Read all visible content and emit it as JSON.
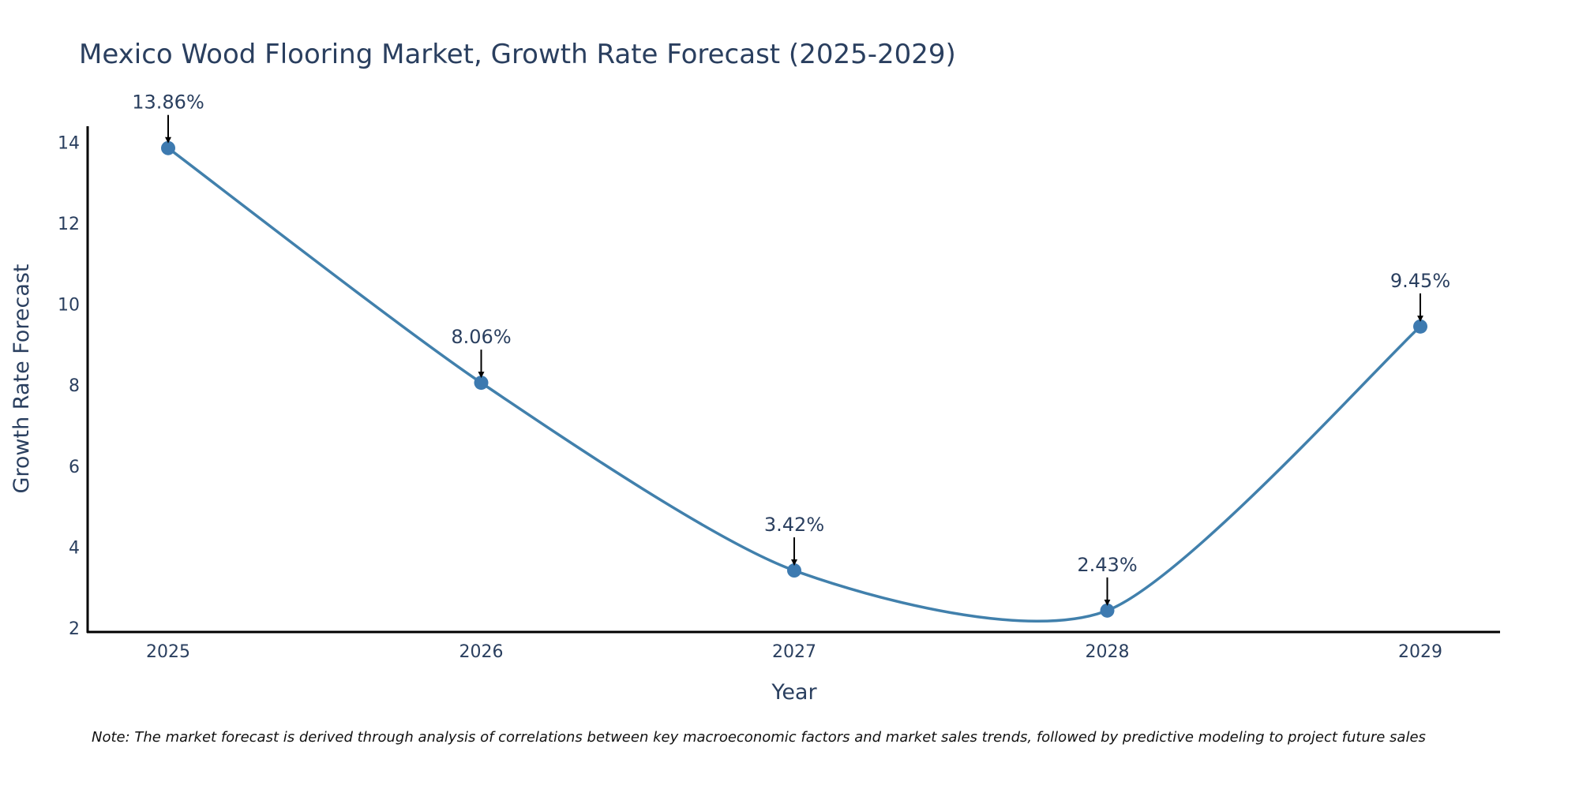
{
  "chart_data": {
    "type": "line",
    "title": "Mexico Wood Flooring Market, Growth Rate Forecast (2025-2029)",
    "xlabel": "Year",
    "ylabel": "Growth Rate Forecast",
    "categories": [
      "2025",
      "2026",
      "2027",
      "2028",
      "2029"
    ],
    "values": [
      13.86,
      8.06,
      3.42,
      2.43,
      9.45
    ],
    "data_labels": [
      "13.86%",
      "8.06%",
      "3.42%",
      "2.43%",
      "9.45%"
    ],
    "yticks": [
      2,
      4,
      6,
      8,
      10,
      12,
      14
    ],
    "ylim": [
      1.9,
      14.4
    ],
    "grid": false,
    "line_shape": "spline",
    "colors": {
      "line": "#4180ac",
      "marker": "#3d7ab0",
      "text": "#2a3f5f",
      "axis": "#000000",
      "arrow": "#000000"
    }
  },
  "note": "Note: The market forecast is derived through analysis of correlations between key macroeconomic factors and market sales trends, followed by predictive modeling to project future sales"
}
